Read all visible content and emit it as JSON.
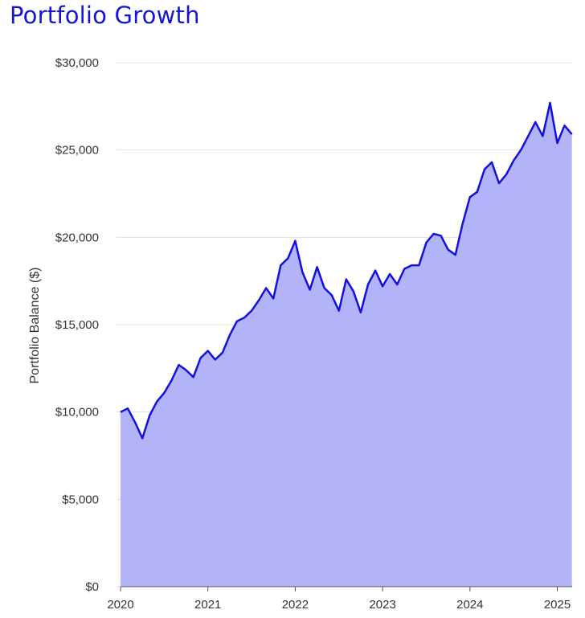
{
  "title": "Portfolio Growth",
  "colors": {
    "title": "#1414e0",
    "line": "#1010e0",
    "area": "#b3b3fa",
    "grid": "#e0e0e0"
  },
  "chart_data": {
    "type": "area",
    "title": "Portfolio Growth",
    "xlabel": "",
    "ylabel": "Portfolio Balance ($)",
    "xlim": [
      2020.0,
      2025.17
    ],
    "ylim": [
      0,
      30000
    ],
    "grid": true,
    "y_ticks": [
      0,
      5000,
      10000,
      15000,
      20000,
      25000,
      30000
    ],
    "y_tick_labels": [
      "$0",
      "$5,000",
      "$10,000",
      "$15,000",
      "$20,000",
      "$25,000",
      "$30,000"
    ],
    "x_ticks": [
      2020,
      2021,
      2022,
      2023,
      2024,
      2025
    ],
    "x_tick_labels": [
      "2020",
      "2021",
      "2022",
      "2023",
      "2024",
      "2025"
    ],
    "series": [
      {
        "name": "Portfolio Balance",
        "x": [
          2020.0,
          2020.083,
          2020.167,
          2020.25,
          2020.333,
          2020.417,
          2020.5,
          2020.583,
          2020.667,
          2020.75,
          2020.833,
          2020.917,
          2021.0,
          2021.083,
          2021.167,
          2021.25,
          2021.333,
          2021.417,
          2021.5,
          2021.583,
          2021.667,
          2021.75,
          2021.833,
          2021.917,
          2022.0,
          2022.083,
          2022.167,
          2022.25,
          2022.333,
          2022.417,
          2022.5,
          2022.583,
          2022.667,
          2022.75,
          2022.833,
          2022.917,
          2023.0,
          2023.083,
          2023.167,
          2023.25,
          2023.333,
          2023.417,
          2023.5,
          2023.583,
          2023.667,
          2023.75,
          2023.833,
          2023.917,
          2024.0,
          2024.083,
          2024.167,
          2024.25,
          2024.333,
          2024.417,
          2024.5,
          2024.583,
          2024.667,
          2024.75,
          2024.833,
          2024.917,
          2025.0,
          2025.083,
          2025.167
        ],
        "values": [
          10000,
          10200,
          9400,
          8500,
          9800,
          10600,
          11100,
          11800,
          12700,
          12400,
          12000,
          13100,
          13500,
          13000,
          13400,
          14400,
          15200,
          15400,
          15800,
          16400,
          17100,
          16500,
          18400,
          18800,
          19800,
          18000,
          17000,
          18300,
          17100,
          16700,
          15800,
          17600,
          16900,
          15700,
          17300,
          18100,
          17200,
          17900,
          17300,
          18200,
          18400,
          18400,
          19700,
          20200,
          20100,
          19300,
          19000,
          20800,
          22300,
          22600,
          23900,
          24300,
          23100,
          23600,
          24400,
          25000,
          25800,
          26600,
          25800,
          27700,
          25400,
          26400,
          25900
        ]
      }
    ]
  }
}
